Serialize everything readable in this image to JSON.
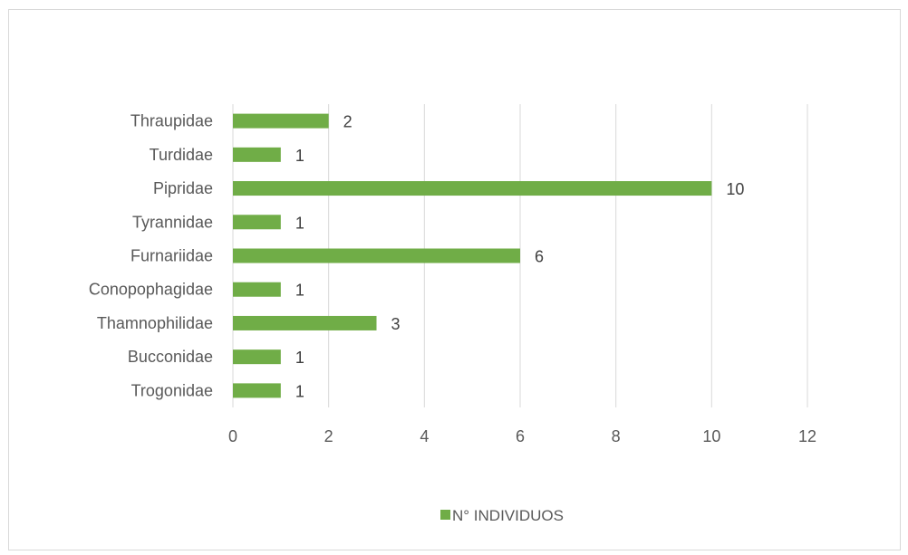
{
  "chart_data": {
    "type": "bar",
    "orientation": "horizontal",
    "categories": [
      "Thraupidae",
      "Turdidae",
      "Pipridae",
      "Tyrannidae",
      "Furnariidae",
      "Conopophagidae",
      "Thamnophilidae",
      "Bucconidae",
      "Trogonidae"
    ],
    "series": [
      {
        "name": "N° INDIVIDUOS",
        "values": [
          2,
          1,
          10,
          1,
          6,
          1,
          3,
          1,
          1
        ],
        "color": "#70ad47"
      }
    ],
    "xlim": [
      0,
      12
    ],
    "xticks": [
      0,
      2,
      4,
      6,
      8,
      10,
      12
    ],
    "grid": "vertical",
    "legend_position": "bottom",
    "data_labels": true
  }
}
